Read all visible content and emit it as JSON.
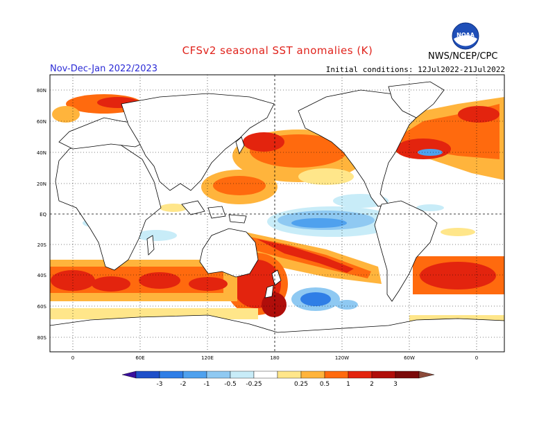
{
  "header": {
    "title": "CFSv2 seasonal SST anomalies (K)",
    "season": "Nov-Dec-Jan 2022/2023",
    "initial_conditions": "Initial conditions: 12Jul2022-21Jul2022",
    "agency": "NWS/NCEP/CPC",
    "logo_text": "NOAA"
  },
  "map": {
    "lat_labels": [
      "80N",
      "60N",
      "40N",
      "20N",
      "EQ",
      "20S",
      "40S",
      "60S",
      "80S"
    ],
    "lon_labels": [
      "0",
      "60E",
      "120E",
      "180",
      "120W",
      "60W",
      "0"
    ]
  },
  "colorbar": {
    "labels": [
      "-3",
      "-2",
      "-1",
      "-0.5",
      "-0.25",
      "0.25",
      "0.5",
      "1",
      "2",
      "3"
    ],
    "colors": [
      "#3a0f9e",
      "#1e4fc9",
      "#2f7ee6",
      "#4fa1ee",
      "#8fc9f2",
      "#c8ecf8",
      "#ffffff",
      "#ffe68a",
      "#ffb43c",
      "#ff6a0e",
      "#e3240e",
      "#b00e0a",
      "#7a0a0a",
      "#8c4a3a"
    ]
  },
  "colors": {
    "title": "#e0221b",
    "season": "#2a2ad6",
    "land": "#ffffff",
    "ocean_neutral": "#ffffff"
  }
}
